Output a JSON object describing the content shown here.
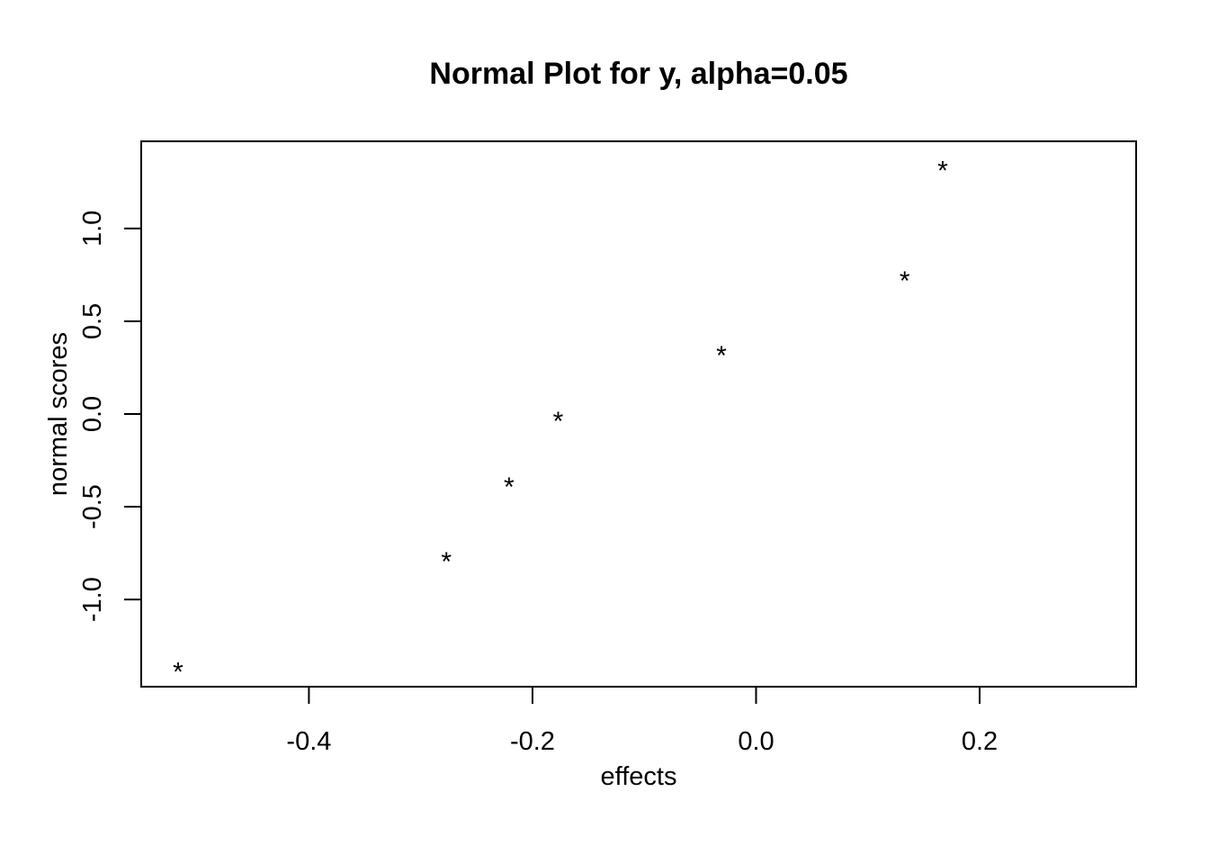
{
  "chart_data": {
    "type": "scatter",
    "title": "Normal Plot for y, alpha=0.05",
    "xlabel": "effects",
    "ylabel": "normal scores",
    "xlim": [
      -0.55,
      0.34
    ],
    "ylim": [
      -1.47,
      1.47
    ],
    "x_ticks": [
      -0.4,
      -0.2,
      0.0,
      0.2
    ],
    "x_tick_labels": [
      "-0.4",
      "-0.2",
      "0.0",
      "0.2"
    ],
    "y_ticks": [
      -1.0,
      -0.5,
      0.0,
      0.5,
      1.0
    ],
    "y_tick_labels": [
      "-1.0",
      "-0.5",
      "0.0",
      "0.5",
      "1.0"
    ],
    "marker": "*",
    "grid": false,
    "points": [
      {
        "x": -0.517,
        "y": -1.352
      },
      {
        "x": -0.277,
        "y": -0.757
      },
      {
        "x": -0.221,
        "y": -0.353
      },
      {
        "x": -0.177,
        "y": 0.0
      },
      {
        "x": -0.031,
        "y": 0.353
      },
      {
        "x": 0.133,
        "y": 0.757
      },
      {
        "x": 0.167,
        "y": 1.352
      }
    ]
  }
}
